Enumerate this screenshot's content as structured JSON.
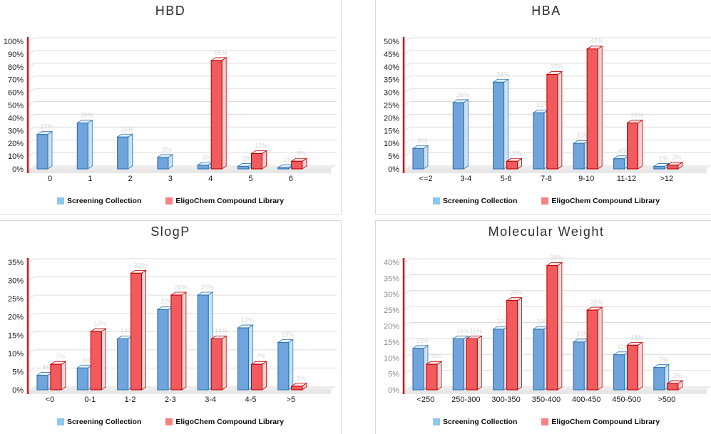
{
  "chart_data": [
    {
      "type": "bar",
      "title": "HBD",
      "ylabel": "",
      "xlabel": "",
      "ylim": [
        0,
        100
      ],
      "ystep": 10,
      "ytick_format": "percent",
      "grid": true,
      "legend_position": "bottom",
      "categories": [
        "0",
        "1",
        "2",
        "3",
        "4",
        "5",
        "6"
      ],
      "series": [
        {
          "name": "Screening Collection",
          "values": [
            27,
            36,
            25,
            9,
            3,
            2,
            1
          ]
        },
        {
          "name": "EligoChem Compound Library",
          "values": [
            0,
            0,
            0,
            0,
            85,
            12,
            6
          ]
        }
      ]
    },
    {
      "type": "bar",
      "title": "HBA",
      "ylabel": "",
      "xlabel": "",
      "ylim": [
        0,
        50
      ],
      "ystep": 5,
      "ytick_format": "percent",
      "grid": true,
      "legend_position": "bottom",
      "categories": [
        "<=2",
        "3-4",
        "5-6",
        "7-8",
        "9-10",
        "11-12",
        ">12"
      ],
      "series": [
        {
          "name": "Screening Collection",
          "values": [
            8,
            26,
            34,
            22,
            10,
            4,
            1
          ]
        },
        {
          "name": "EligoChem Compound Library",
          "values": [
            0,
            0,
            3,
            37,
            47,
            18,
            1.5
          ]
        }
      ]
    },
    {
      "type": "bar",
      "title": "SlogP",
      "ylabel": "",
      "xlabel": "",
      "ylim": [
        0,
        35
      ],
      "ystep": 5,
      "ytick_format": "percent",
      "grid": true,
      "legend_position": "bottom",
      "categories": [
        "<0",
        "0-1",
        "1-2",
        "2-3",
        "3-4",
        "4-5",
        ">5"
      ],
      "series": [
        {
          "name": "Screening Collection",
          "values": [
            4,
            6,
            14,
            22,
            26,
            17,
            13
          ]
        },
        {
          "name": "EligoChem Compound Library",
          "values": [
            7,
            16,
            32,
            26,
            14,
            7,
            1
          ]
        }
      ]
    },
    {
      "type": "bar",
      "title": "Molecular Weight",
      "ylabel": "",
      "xlabel": "",
      "ylim": [
        0,
        40
      ],
      "ystep": 5,
      "ytick_format": "percent",
      "tick_label_color": "#8c8c8c",
      "grid": true,
      "legend_position": "bottom",
      "categories": [
        "<250",
        "250-300",
        "300-350",
        "350-400",
        "400-450",
        "450-500",
        ">500"
      ],
      "series": [
        {
          "name": "Screening Collection",
          "values": [
            13,
            16,
            19,
            19,
            15,
            11,
            7
          ]
        },
        {
          "name": "EligoChem Compound Library",
          "values": [
            8,
            16,
            28,
            39,
            25,
            14,
            2
          ]
        }
      ]
    }
  ],
  "style": {
    "series_colors": [
      {
        "front": "#6FA5DC",
        "edge": "#2E75B6",
        "side": "#CFE2F3",
        "top": "#E9F1F9",
        "legend_swatch": "#87CAF6"
      },
      {
        "front": "#F25A5D",
        "edge": "#C00000",
        "side": "#F9D3D4",
        "top": "#FBE5E5",
        "legend_swatch": "#F98184"
      }
    ],
    "axis_line_color": "#DE1111",
    "gridline_color": "#DCDCDC",
    "floor_top_color": "#ECECEC",
    "floor_front_color": "#E7E7E7",
    "panel_border_color": "#D9D9D9",
    "title_color": "#2F2F2F",
    "category_label_color": "#1A1A1A",
    "default_tick_color": "#1A1A1A",
    "faint_bar_label_color": "#CDCDCD"
  }
}
